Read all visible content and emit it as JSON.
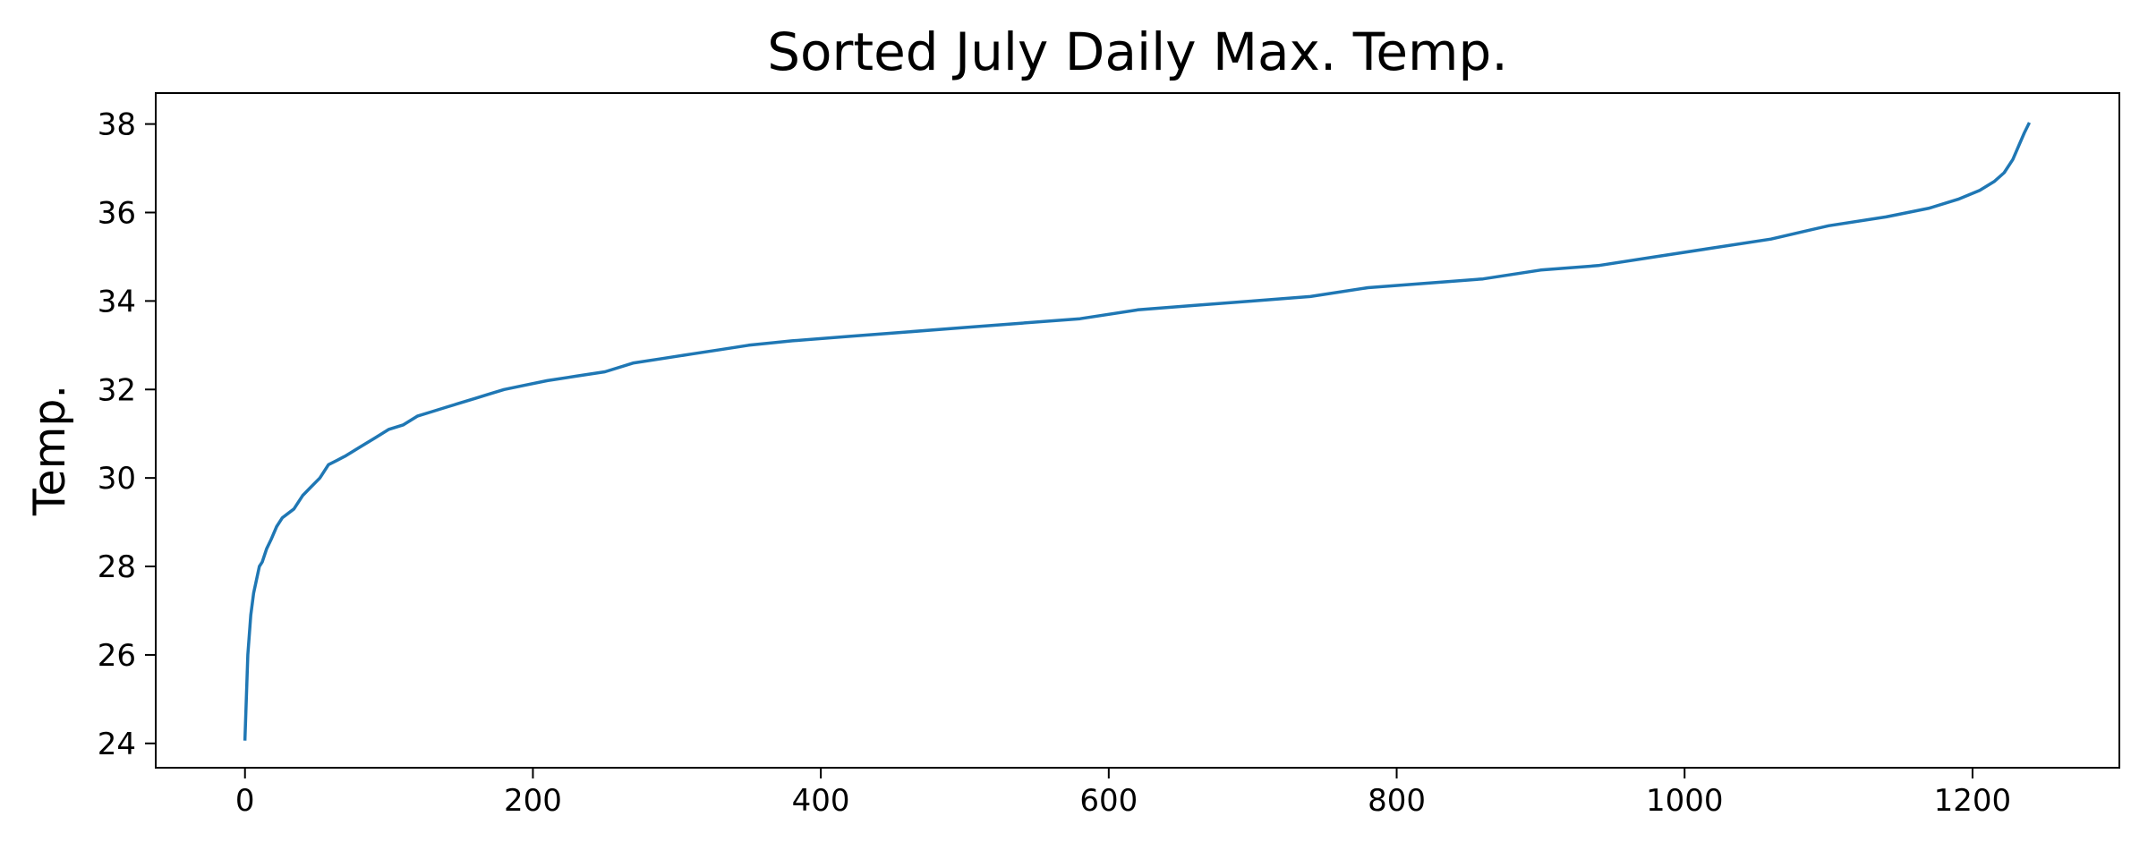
{
  "chart_data": {
    "type": "line",
    "title": "Sorted July Daily Max. Temp.",
    "xlabel": "",
    "ylabel": "Temp.",
    "xlim": [
      -62,
      1302
    ],
    "ylim": [
      23.45,
      38.7
    ],
    "xticks": [
      0,
      200,
      400,
      600,
      800,
      1000,
      1200
    ],
    "yticks": [
      24,
      26,
      28,
      30,
      32,
      34,
      36,
      38
    ],
    "grid": false,
    "legend": "none",
    "series": [
      {
        "color": "#1f77b4",
        "x": [
          0,
          2,
          4,
          6,
          8,
          10,
          12,
          15,
          18,
          22,
          26,
          30,
          34,
          40,
          46,
          52,
          58,
          64,
          70,
          80,
          90,
          100,
          110,
          120,
          130,
          140,
          150,
          160,
          170,
          180,
          195,
          210,
          230,
          250,
          270,
          290,
          310,
          330,
          350,
          380,
          420,
          460,
          500,
          540,
          580,
          620,
          660,
          700,
          740,
          780,
          820,
          860,
          900,
          940,
          980,
          1020,
          1060,
          1100,
          1140,
          1170,
          1190,
          1205,
          1215,
          1222,
          1228,
          1232,
          1236,
          1239
        ],
        "y": [
          24.1,
          26.0,
          26.9,
          27.4,
          27.7,
          28.0,
          28.1,
          28.4,
          28.6,
          28.9,
          29.1,
          29.2,
          29.3,
          29.6,
          29.8,
          30.0,
          30.3,
          30.4,
          30.5,
          30.7,
          30.9,
          31.1,
          31.2,
          31.4,
          31.5,
          31.6,
          31.7,
          31.8,
          31.9,
          32.0,
          32.1,
          32.2,
          32.3,
          32.4,
          32.6,
          32.7,
          32.8,
          32.9,
          33.0,
          33.1,
          33.2,
          33.3,
          33.4,
          33.5,
          33.6,
          33.8,
          33.9,
          34.0,
          34.1,
          34.3,
          34.4,
          34.5,
          34.7,
          34.8,
          35.0,
          35.2,
          35.4,
          35.7,
          35.9,
          36.1,
          36.3,
          36.5,
          36.7,
          36.9,
          37.2,
          37.5,
          37.8,
          38.0
        ]
      }
    ]
  }
}
